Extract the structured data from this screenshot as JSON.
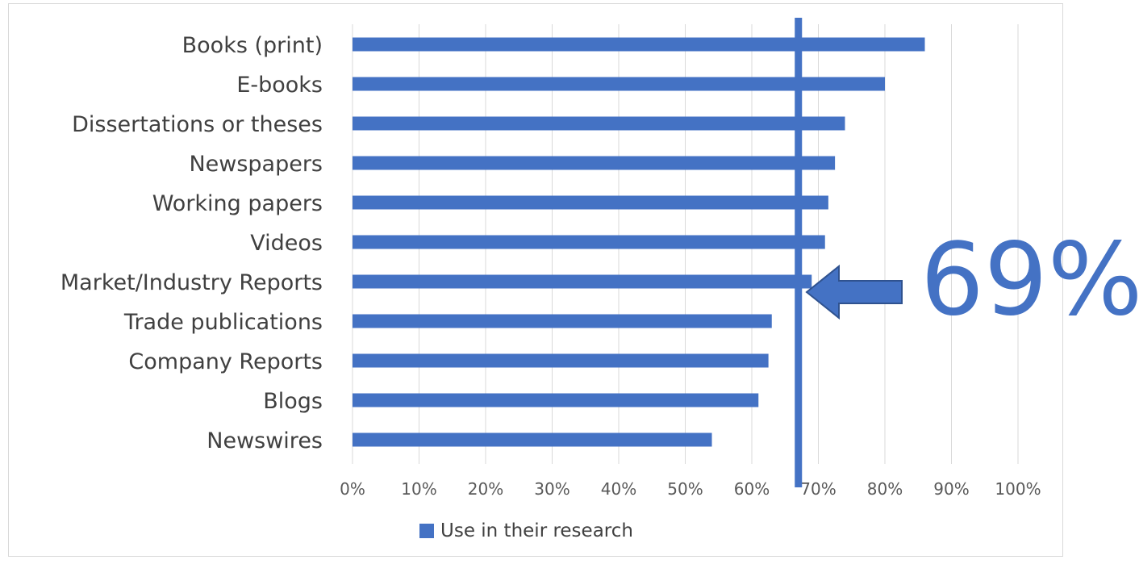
{
  "chart_data": {
    "type": "bar",
    "orientation": "horizontal",
    "categories": [
      "Books (print)",
      "E-books",
      "Dissertations or theses",
      "Newspapers",
      "Working papers",
      "Videos",
      "Market/Industry Reports",
      "Trade publications",
      "Company Reports",
      "Blogs",
      "Newswires"
    ],
    "series": [
      {
        "name": "Use in their research",
        "values": [
          86,
          80,
          74,
          72.5,
          71.5,
          71,
          69,
          63,
          62.5,
          61,
          54
        ]
      }
    ],
    "xlim": [
      0,
      100
    ],
    "x_ticks": [
      "0%",
      "10%",
      "20%",
      "30%",
      "40%",
      "50%",
      "60%",
      "70%",
      "80%",
      "90%",
      "100%"
    ],
    "grid": "vertical",
    "legend": "bottom",
    "reference_line_value": 67,
    "annotation": {
      "text": "69%",
      "points_to": "Market/Industry Reports"
    },
    "colors": {
      "bar": "#4472c4",
      "reference": "#4472c4",
      "grid": "#d9d9d9",
      "text": "#404040"
    }
  }
}
